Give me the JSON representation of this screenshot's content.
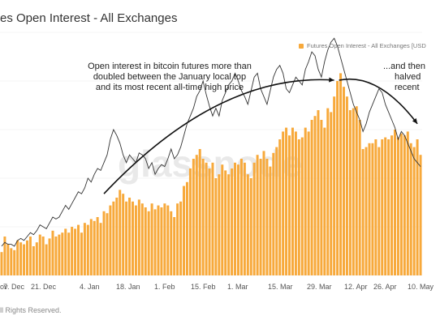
{
  "title": "es Open Interest - All Exchanges",
  "legend": {
    "label": "Futures Open Interest - All Exchanges [USD",
    "color": "#F7A93B"
  },
  "watermark": "glassnode",
  "annotations": {
    "left": [
      "Open interest in bitcoin futures more than",
      "doubled between the January local top",
      "and its most recent all-time high price"
    ],
    "right": [
      "...and then",
      "halved",
      "recent"
    ]
  },
  "footer": "ll Rights Reserved.",
  "colors": {
    "bar": "#F7A93B",
    "line": "#333333",
    "arrow": "#111111",
    "grid": "#eeeeee"
  },
  "chart_data": {
    "type": "bar",
    "x_tick_labels": [
      "ov",
      "7. Dec",
      "21. Dec",
      "4. Jan",
      "18. Jan",
      "1. Feb",
      "15. Feb",
      "1. Mar",
      "15. Mar",
      "29. Mar",
      "12. Apr",
      "26. Apr",
      "10. May"
    ],
    "series": [
      {
        "name": "Futures Open Interest - All Exchanges [USD",
        "kind": "bar",
        "values": [
          12,
          20,
          16,
          14,
          13,
          18,
          17,
          16,
          18,
          20,
          15,
          17,
          21,
          20,
          16,
          19,
          23,
          20,
          21,
          22,
          24,
          22,
          25,
          24,
          26,
          22,
          27,
          26,
          29,
          28,
          30,
          27,
          33,
          32,
          36,
          38,
          40,
          44,
          42,
          38,
          40,
          38,
          36,
          39,
          37,
          35,
          33,
          37,
          34,
          36,
          35,
          37,
          36,
          33,
          30,
          37,
          38,
          46,
          48,
          55,
          60,
          62,
          65,
          60,
          58,
          55,
          58,
          50,
          52,
          57,
          54,
          52,
          55,
          58,
          57,
          60,
          58,
          52,
          50,
          58,
          62,
          60,
          64,
          60,
          56,
          63,
          66,
          70,
          74,
          76,
          72,
          76,
          74,
          70,
          71,
          76,
          74,
          80,
          82,
          85,
          80,
          76,
          86,
          84,
          92,
          100,
          104,
          97,
          92,
          85,
          86,
          87,
          80,
          65,
          66,
          68,
          68,
          70,
          66,
          70,
          71,
          70,
          72,
          75,
          71,
          73,
          72,
          74,
          68,
          66,
          70,
          62
        ]
      },
      {
        "name": "price",
        "kind": "line",
        "values": [
          15,
          17,
          16,
          16,
          15,
          18,
          19,
          18,
          20,
          22,
          21,
          23,
          26,
          25,
          24,
          27,
          30,
          29,
          30,
          33,
          36,
          34,
          37,
          40,
          43,
          42,
          45,
          50,
          48,
          52,
          55,
          54,
          58,
          62,
          70,
          75,
          72,
          68,
          62,
          58,
          62,
          60,
          58,
          63,
          62,
          60,
          55,
          58,
          52,
          55,
          57,
          56,
          60,
          65,
          60,
          62,
          66,
          72,
          78,
          82,
          86,
          92,
          95,
          100,
          93,
          87,
          82,
          86,
          82,
          90,
          94,
          98,
          100,
          104,
          100,
          95,
          92,
          88,
          95,
          102,
          104,
          96,
          92,
          88,
          95,
          102,
          106,
          108,
          104,
          96,
          94,
          98,
          102,
          100,
          98,
          106,
          110,
          115,
          113,
          106,
          102,
          110,
          116,
          120,
          122,
          118,
          112,
          106,
          100,
          94,
          88,
          84,
          80,
          74,
          78,
          84,
          88,
          92,
          96,
          94,
          88,
          84,
          80,
          76,
          70,
          74,
          72,
          68,
          64,
          60,
          58,
          56
        ]
      }
    ],
    "grid": true,
    "legend_position": "top-right"
  }
}
